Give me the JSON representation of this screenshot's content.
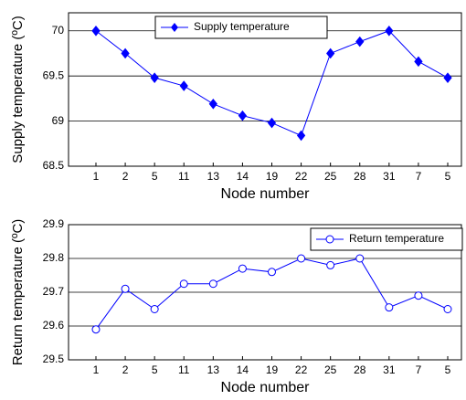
{
  "chart_data": [
    {
      "type": "line",
      "xlabel": "Node number",
      "ylabel": "Supply temperature (ºC)",
      "categories": [
        "1",
        "2",
        "5",
        "11",
        "13",
        "14",
        "19",
        "22",
        "25",
        "28",
        "31",
        "7",
        "5"
      ],
      "series": [
        {
          "name": "Supply temperature",
          "color": "#0000ff",
          "marker": "diamond",
          "values": [
            70,
            69.75,
            69.48,
            69.39,
            69.19,
            69.06,
            68.98,
            68.84,
            69.75,
            69.88,
            70,
            69.66,
            69.48
          ]
        }
      ],
      "ylim": [
        68.5,
        70.2
      ],
      "yticks": [
        68.5,
        69,
        69.5,
        70
      ],
      "grid": true,
      "legend": "upper left"
    },
    {
      "type": "line",
      "xlabel": "Node number",
      "ylabel": "Return temperature (ºC)",
      "categories": [
        "1",
        "2",
        "5",
        "11",
        "13",
        "14",
        "19",
        "22",
        "25",
        "28",
        "31",
        "7",
        "5"
      ],
      "series": [
        {
          "name": "Return temperature",
          "color": "#0000ff",
          "marker": "circle",
          "values": [
            29.59,
            29.71,
            29.65,
            29.725,
            29.725,
            29.77,
            29.76,
            29.8,
            29.78,
            29.8,
            29.655,
            29.69,
            29.65
          ]
        }
      ],
      "ylim": [
        29.5,
        29.9
      ],
      "yticks": [
        29.5,
        29.6,
        29.7,
        29.8,
        29.9
      ],
      "grid": true,
      "legend": "upper right"
    }
  ]
}
